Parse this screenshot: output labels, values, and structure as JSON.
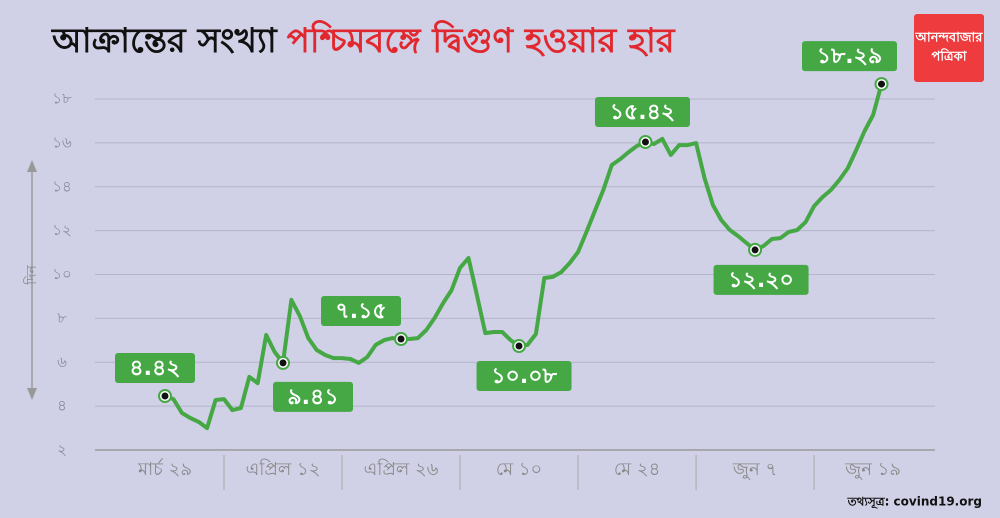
{
  "chart_data": {
    "type": "line",
    "title": "আক্রান্তের সংখ্যা",
    "title_highlight": "পশ্চিমবঙ্গে দ্বিগুণ হওয়ার হার",
    "ylabel": "দিন",
    "logo": [
      "আনন্দবাজার",
      "পত্রিকা"
    ],
    "source": "তথ্যসূত্র: covind19.org",
    "categories": [
      "মার্চ ২৯",
      null,
      null,
      null,
      null,
      null,
      null,
      null,
      null,
      null,
      null,
      null,
      null,
      null,
      "এপ্রিল ১২",
      null,
      null,
      null,
      null,
      null,
      null,
      null,
      null,
      null,
      null,
      null,
      null,
      null,
      "এপ্রিল ২৬",
      null,
      null,
      null,
      null,
      null,
      null,
      null,
      null,
      null,
      null,
      null,
      null,
      null,
      "মে ১০",
      null,
      null,
      null,
      null,
      null,
      null,
      null,
      null,
      null,
      null,
      null,
      null,
      null,
      "মে ২৪",
      null,
      null,
      null,
      null,
      null,
      null,
      null,
      null,
      null,
      null,
      null,
      null,
      null,
      "জুন ৭",
      null,
      null,
      null,
      null,
      null,
      null,
      null,
      null,
      null,
      null,
      null,
      null,
      null,
      "জুন ১৯",
      null
    ],
    "series": [
      {
        "color": "#45a845",
        "values": [
          4.46,
          4.32,
          3.69,
          3.46,
          3.28,
          3.0,
          4.28,
          4.32,
          3.82,
          3.91,
          5.33,
          5.05,
          7.24,
          6.47,
          5.97,
          8.84,
          8.1,
          7.1,
          6.56,
          6.33,
          6.19,
          6.19,
          6.15,
          5.97,
          6.24,
          6.79,
          7.01,
          7.1,
          7.06,
          7.06,
          7.1,
          7.47,
          8.02,
          8.7,
          9.29,
          10.3,
          10.75,
          9.06,
          7.33,
          7.38,
          7.38,
          7.01,
          6.74,
          6.79,
          7.29,
          9.84,
          9.89,
          10.11,
          10.52,
          11.02,
          11.94,
          12.9,
          13.85,
          14.99,
          15.26,
          15.58,
          15.86,
          16.04,
          15.95,
          16.18,
          15.45,
          15.9,
          15.9,
          15.99,
          14.4,
          13.17,
          12.48,
          12.03,
          11.75,
          11.43,
          11.12,
          11.3,
          11.62,
          11.66,
          11.94,
          12.03,
          12.39,
          13.12,
          13.53,
          13.85,
          14.31,
          14.85,
          15.67,
          16.54,
          17.27,
          18.68
        ]
      }
    ],
    "annotations": [
      "৪.৪২",
      "৯.৪১",
      "৭.১৫",
      "১০.০৮",
      "১৫.৪২",
      "১২.২০",
      "১৮.২৯"
    ],
    "ylim": [
      2,
      18
    ],
    "yticks": [
      {
        "value": 2,
        "label": "২"
      },
      {
        "value": 4,
        "label": "৪"
      },
      {
        "value": 6,
        "label": "৬"
      },
      {
        "value": 8,
        "label": "৮"
      },
      {
        "value": 10,
        "label": "১০"
      },
      {
        "value": 12,
        "label": "১২"
      },
      {
        "value": 14,
        "label": "১৪"
      },
      {
        "value": 16,
        "label": "১৬"
      },
      {
        "value": 18,
        "label": "১৮"
      }
    ],
    "grid": true
  }
}
